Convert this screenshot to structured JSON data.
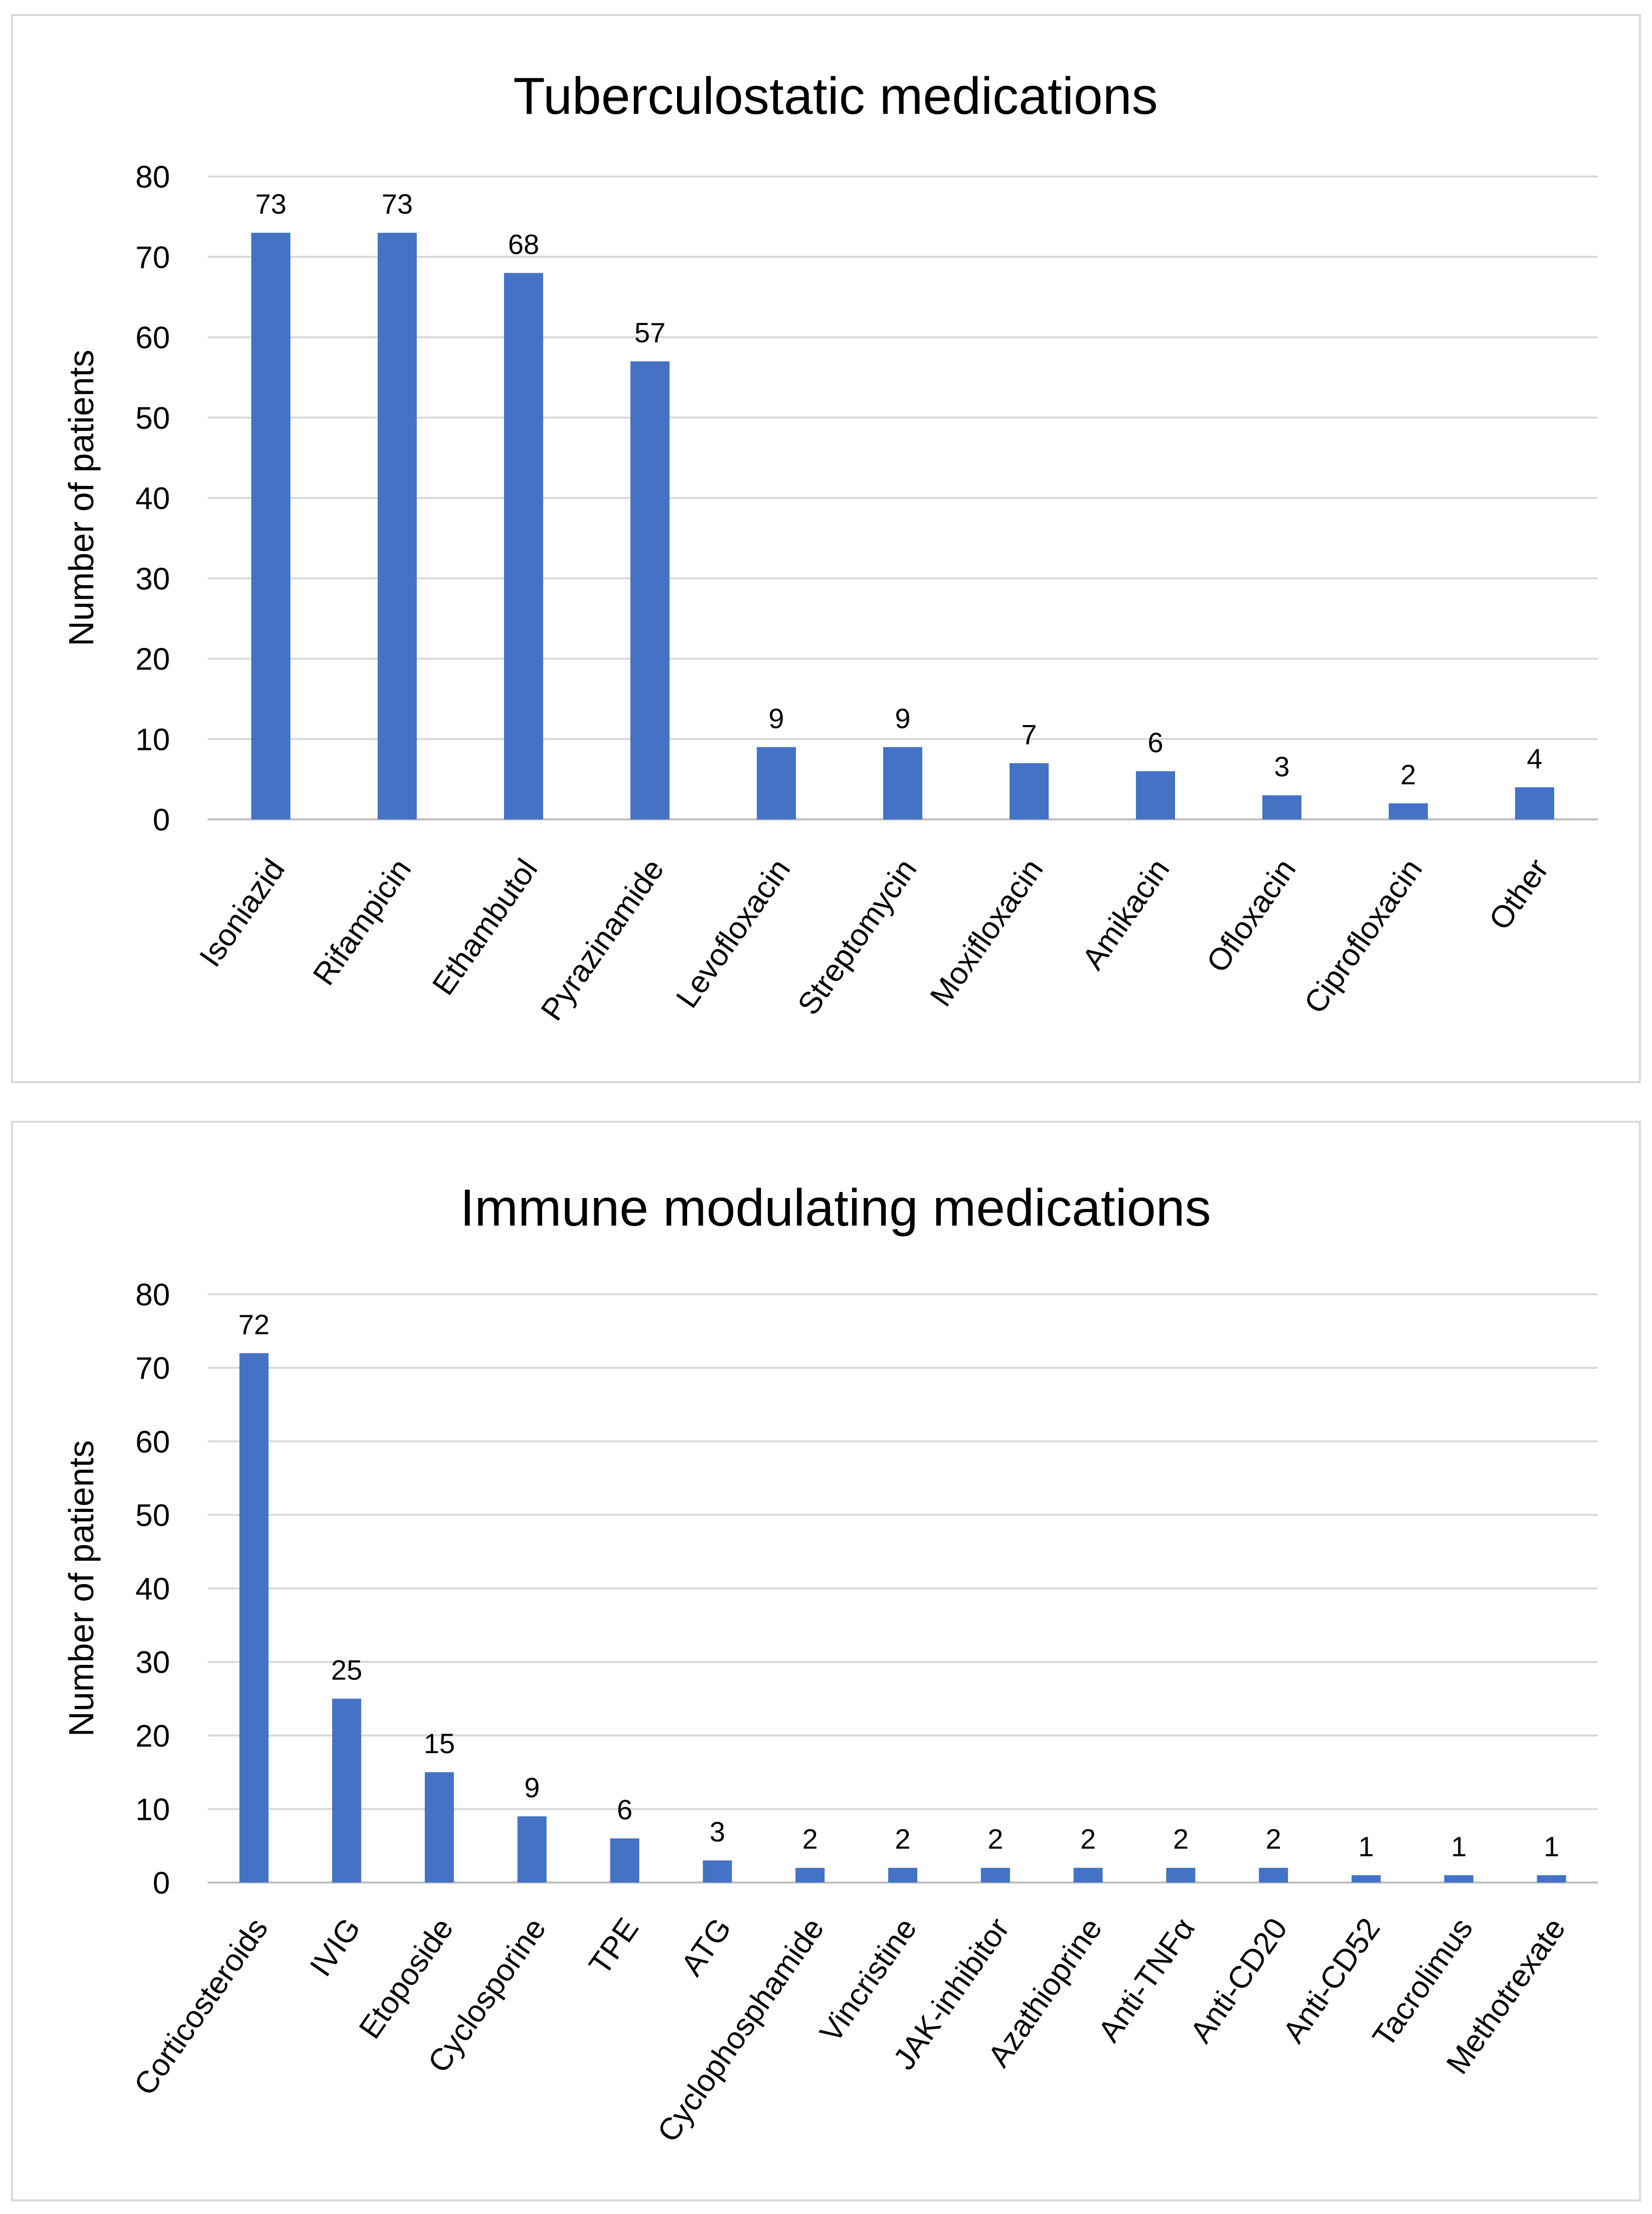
{
  "chart_data": [
    {
      "type": "bar",
      "title": "Tuberculostatic medications",
      "xlabel": "",
      "ylabel": "Number of patients",
      "ylim": [
        0,
        80
      ],
      "yticks": [
        0,
        10,
        20,
        30,
        40,
        50,
        60,
        70,
        80
      ],
      "grid": true,
      "legend": "none",
      "bar_color": "#4472C4",
      "categories": [
        "Isoniazid",
        "Rifampicin",
        "Ethambutol",
        "Pyrazinamide",
        "Levofloxacin",
        "Streptomycin",
        "Moxifloxacin",
        "Amikacin",
        "Ofloxacin",
        "Ciprofloxacin",
        "Other"
      ],
      "values": [
        73,
        73,
        68,
        57,
        9,
        9,
        7,
        6,
        3,
        2,
        4
      ]
    },
    {
      "type": "bar",
      "title": "Immune modulating medications",
      "xlabel": "",
      "ylabel": "Number of patients",
      "ylim": [
        0,
        80
      ],
      "yticks": [
        0,
        10,
        20,
        30,
        40,
        50,
        60,
        70,
        80
      ],
      "grid": true,
      "legend": "none",
      "bar_color": "#4472C4",
      "categories": [
        "Corticosteroids",
        "IVIG",
        "Etoposide",
        "Cyclosporine",
        "TPE",
        "ATG",
        "Cyclophosphamide",
        "Vincristine",
        "JAK-inhibitor",
        "Azathioprine",
        "Anti-TNFα",
        "Anti-CD20",
        "Anti-CD52",
        "Tacrolimus",
        "Methotrexate"
      ],
      "values": [
        72,
        25,
        15,
        9,
        6,
        3,
        2,
        2,
        2,
        2,
        2,
        2,
        1,
        1,
        1
      ]
    }
  ]
}
